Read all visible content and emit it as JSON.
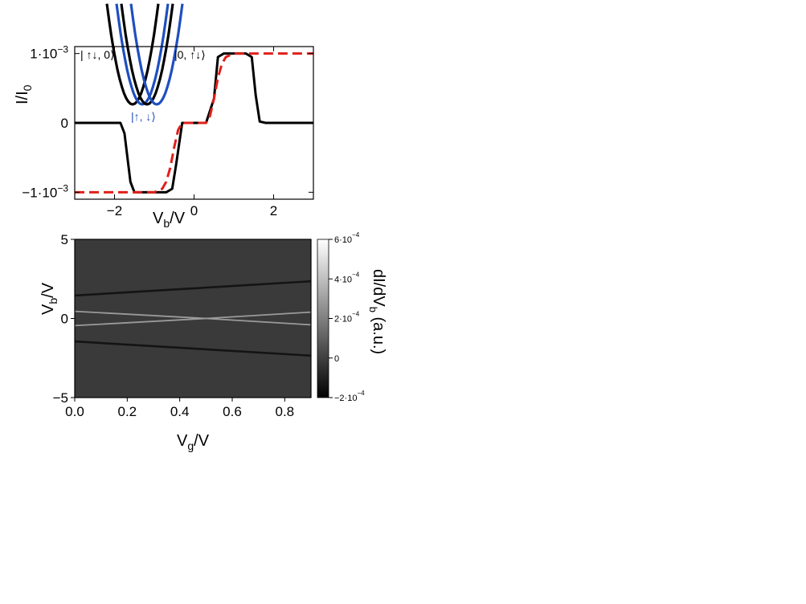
{
  "chart_data": [
    {
      "type": "line",
      "title": "",
      "xlabel": "V",
      "xlabel_sub": "b",
      "xlabel_suffix": "/V",
      "ylabel": "I/I",
      "ylabel_sub": "0",
      "xlim": [
        -3,
        3
      ],
      "ylim": [
        -0.0011,
        0.0011
      ],
      "grid": false,
      "xticks": [
        {
          "value": -2,
          "label": "−2"
        },
        {
          "value": 0,
          "label": "0"
        },
        {
          "value": 2,
          "label": "2"
        }
      ],
      "yticks": [
        {
          "value": 0.001,
          "label": "1·10",
          "exp": "−3"
        },
        {
          "value": 0,
          "label": "0",
          "exp": ""
        },
        {
          "value": -0.001,
          "label": "−1·10",
          "exp": "−3"
        }
      ],
      "series": [
        {
          "color": "#000000",
          "style": "solid",
          "x": [
            -3.0,
            -1.85,
            -1.75,
            -1.6,
            -1.5,
            -1.2,
            -0.7,
            -0.55,
            -0.45,
            -0.3,
            0.0,
            0.3,
            0.5,
            0.6,
            0.75,
            1.3,
            1.45,
            1.55,
            1.65,
            1.8,
            3.0
          ],
          "y": [
            0.0,
            0.0,
            -0.00015,
            -0.00085,
            -0.001,
            -0.001,
            -0.001,
            -0.00095,
            -0.0006,
            0.0,
            0.0,
            0.0,
            0.00035,
            0.00095,
            0.001,
            0.001,
            0.00095,
            0.0004,
            2e-05,
            0.0,
            0.0
          ]
        },
        {
          "color": "#e0201b",
          "style": "dashed",
          "x": [
            -3.0,
            -1.0,
            -0.8,
            -0.7,
            -0.6,
            -0.5,
            -0.4,
            -0.3,
            0.3,
            0.4,
            0.5,
            0.6,
            0.7,
            0.8,
            1.0,
            3.0
          ],
          "y": [
            -0.001,
            -0.001,
            -0.00095,
            -0.00085,
            -0.00065,
            -0.00035,
            -0.0001,
            0.0,
            0.0,
            0.0001,
            0.00035,
            0.00065,
            0.00085,
            0.00095,
            0.001,
            0.001
          ]
        }
      ],
      "inset": {
        "state_left": "| ↑↓, 0⟩",
        "state_right": "|0, ↑↓⟩",
        "state_bottom": "|↑, ↓⟩",
        "parabolas": [
          {
            "color": "#000000",
            "center": 0.35
          },
          {
            "color": "#1f4fbf",
            "center": 0.47
          },
          {
            "color": "#000000",
            "center": 0.53
          },
          {
            "color": "#1f4fbf",
            "center": 0.65
          }
        ]
      }
    },
    {
      "type": "heatmap",
      "title": "",
      "xlabel": "V",
      "xlabel_sub": "g",
      "xlabel_suffix": "/V",
      "ylabel": "V",
      "ylabel_sub": "b",
      "ylabel_suffix": "/V",
      "xlim": [
        0,
        0.9
      ],
      "ylim": [
        -5,
        5
      ],
      "background_value": 0,
      "xticks": [
        {
          "value": 0.0,
          "label": "0.0"
        },
        {
          "value": 0.2,
          "label": "0.2"
        },
        {
          "value": 0.4,
          "label": "0.4"
        },
        {
          "value": 0.6,
          "label": "0.6"
        },
        {
          "value": 0.8,
          "label": "0.8"
        }
      ],
      "yticks": [
        {
          "value": 5,
          "label": "5"
        },
        {
          "value": 0,
          "label": "0"
        },
        {
          "value": -5,
          "label": "−5"
        }
      ],
      "lines": [
        {
          "x": [
            0,
            0.9
          ],
          "y": [
            1.45,
            2.35
          ],
          "tone": "dark"
        },
        {
          "x": [
            0,
            0.9
          ],
          "y": [
            -1.45,
            -2.35
          ],
          "tone": "dark"
        },
        {
          "x": [
            0,
            0.5,
            0.9
          ],
          "y": [
            0.45,
            0.0,
            -0.4
          ],
          "tone": "light"
        },
        {
          "x": [
            0,
            0.5,
            0.9
          ],
          "y": [
            -0.45,
            0.0,
            0.4
          ],
          "tone": "light"
        }
      ],
      "colorbar": {
        "label": "dI/dV",
        "label_sub": "b",
        "label_suffix": " (a.u.)",
        "range": [
          -0.0002,
          0.0006
        ],
        "ticks": [
          {
            "value": 0.0006,
            "label": "6·10",
            "exp": "−4"
          },
          {
            "value": 0.0004,
            "label": "4·10",
            "exp": "−4"
          },
          {
            "value": 0.0002,
            "label": "2·10",
            "exp": "−4"
          },
          {
            "value": 0,
            "label": "0",
            "exp": ""
          },
          {
            "value": -0.0002,
            "label": "−2·10",
            "exp": "−4"
          }
        ]
      }
    }
  ]
}
